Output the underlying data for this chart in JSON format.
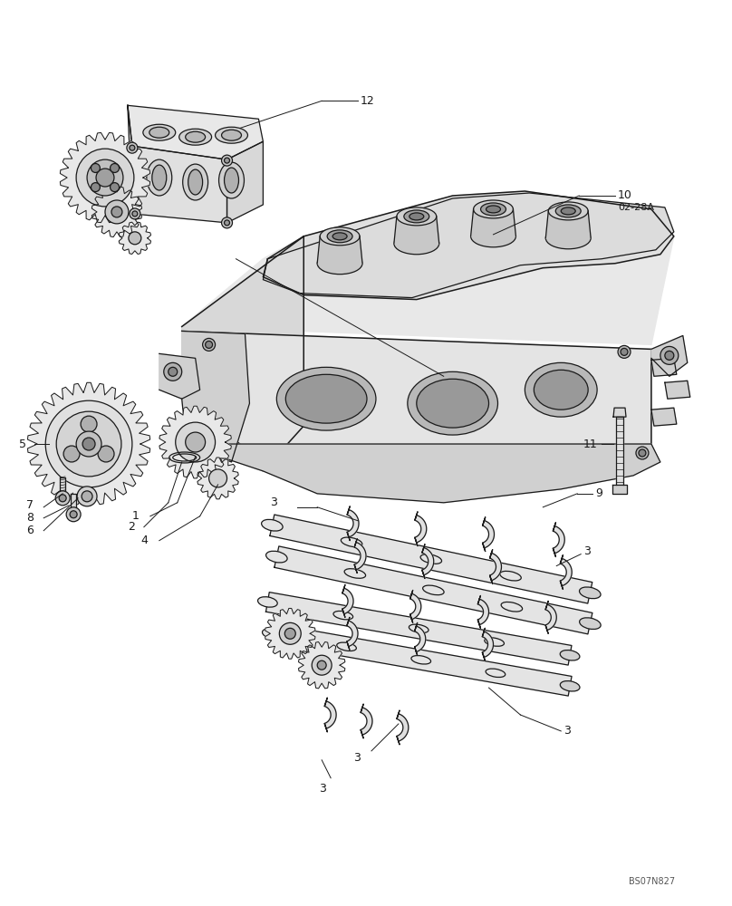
{
  "background_color": "#ffffff",
  "line_color": "#1a1a1a",
  "text_color": "#1a1a1a",
  "image_code": "BS07N827",
  "fig_width": 8.08,
  "fig_height": 10.0,
  "dpi": 100,
  "label_fs": 9,
  "leader_lw": 0.7,
  "draw_lw": 0.9,
  "draw_lw2": 1.1
}
